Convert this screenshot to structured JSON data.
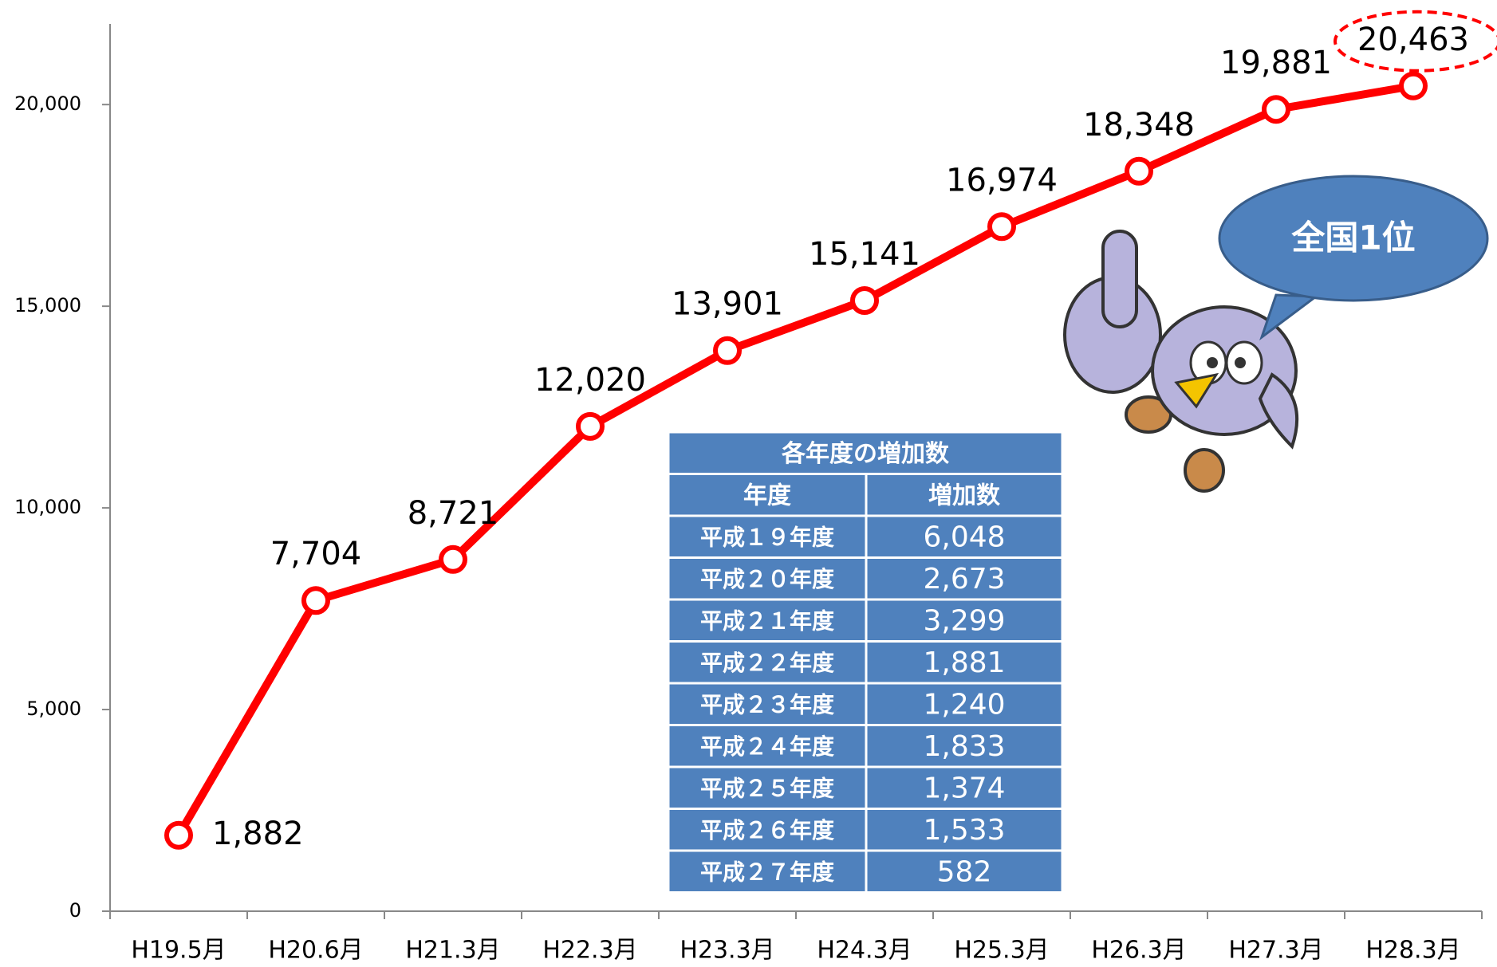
{
  "chart_data": {
    "type": "line",
    "categories": [
      "H19.5月",
      "H20.6月",
      "H21.3月",
      "H22.3月",
      "H23.3月",
      "H24.3月",
      "H25.3月",
      "H26.3月",
      "H27.3月",
      "H28.3月"
    ],
    "values": [
      1882,
      7704,
      8721,
      12020,
      13901,
      15141,
      16974,
      18348,
      19881,
      20463
    ],
    "value_labels": [
      "1,882",
      "7,704",
      "8,721",
      "12,020",
      "13,901",
      "15,141",
      "16,974",
      "18,348",
      "19,881",
      "20,463"
    ],
    "color": "#ff0000",
    "ylim": [
      0,
      22000
    ],
    "yticks": [
      0,
      {
        "value": 5000,
        "label": "5,000"
      },
      {
        "value": 10000,
        "label": "10,000"
      },
      {
        "value": 15000,
        "label": "15,000"
      },
      {
        "value": 20000,
        "label": "20,000"
      }
    ],
    "grid": false,
    "callout": "全国1位"
  },
  "table": {
    "title": "各年度の増加数",
    "columns": [
      "年度",
      "増加数"
    ],
    "rows": [
      [
        "平成１９年度",
        "6,048"
      ],
      [
        "平成２０年度",
        "2,673"
      ],
      [
        "平成２１年度",
        "3,299"
      ],
      [
        "平成２２年度",
        "1,881"
      ],
      [
        "平成２３年度",
        "1,240"
      ],
      [
        "平成２４年度",
        "1,833"
      ],
      [
        "平成２５年度",
        "1,374"
      ],
      [
        "平成２６年度",
        "1,533"
      ],
      [
        "平成２７年度",
        "582"
      ]
    ]
  }
}
